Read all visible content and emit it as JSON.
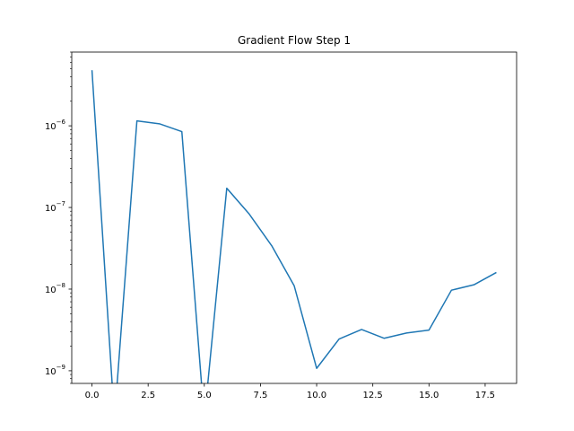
{
  "chart_data": {
    "type": "line",
    "title": "Gradient Flow Step 1",
    "xlabel": "",
    "ylabel": "",
    "yscale": "log",
    "xlim": [
      -0.9,
      18.9
    ],
    "ylim": [
      7e-10,
      8e-06
    ],
    "grid": false,
    "legend": "none",
    "line_color": "#1f77b4",
    "x_ticks": [
      {
        "value": 0,
        "label": "0.0"
      },
      {
        "value": 2.5,
        "label": "2.5"
      },
      {
        "value": 5,
        "label": "5.0"
      },
      {
        "value": 7.5,
        "label": "7.5"
      },
      {
        "value": 10,
        "label": "10.0"
      },
      {
        "value": 12.5,
        "label": "12.5"
      },
      {
        "value": 15,
        "label": "15.0"
      },
      {
        "value": 17.5,
        "label": "17.5"
      }
    ],
    "y_ticks": [
      {
        "value": 1e-09,
        "base": "10",
        "exp": "−9"
      },
      {
        "value": 1e-08,
        "base": "10",
        "exp": "−8"
      },
      {
        "value": 1e-07,
        "base": "10",
        "exp": "−7"
      },
      {
        "value": 1e-06,
        "base": "10",
        "exp": "−6"
      }
    ],
    "series": [
      {
        "x": [
          0,
          1,
          2,
          3,
          4,
          5,
          6,
          7,
          8,
          9,
          10,
          11,
          12,
          13,
          14,
          15,
          16,
          17,
          18
        ],
        "y": [
          4.8e-06,
          0,
          1.15e-06,
          1.06e-06,
          8.5e-07,
          0,
          1.72e-07,
          8.3e-08,
          3.4e-08,
          1.1e-08,
          1.07e-09,
          2.45e-09,
          3.2e-09,
          2.5e-09,
          2.9e-09,
          3.15e-09,
          9.7e-09,
          1.13e-08,
          1.6e-08
        ]
      }
    ]
  }
}
